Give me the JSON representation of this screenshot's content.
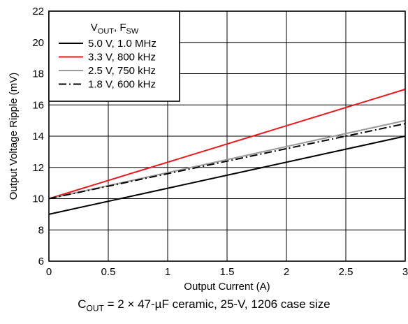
{
  "chart_data": {
    "type": "line",
    "xlabel": "Output Current (A)",
    "ylabel": "Output Voltage Ripple (mV)",
    "xlim": [
      0,
      3
    ],
    "ylim": [
      6,
      22
    ],
    "x_ticks": [
      "0",
      "0.5",
      "1",
      "1.5",
      "2",
      "2.5",
      "3"
    ],
    "y_ticks": [
      "6",
      "8",
      "10",
      "12",
      "14",
      "16",
      "18",
      "20",
      "22"
    ],
    "grid": true,
    "legend": {
      "placement": "top-left",
      "title_v": "V",
      "title_v_sub": "OUT",
      "title_sep": ", F",
      "title_f_sub": "SW"
    },
    "series": [
      {
        "name": "5.0 V, 1.0 MHz",
        "color": "#000000",
        "dash": "solid",
        "x": [
          0,
          3
        ],
        "y": [
          9.0,
          14.0
        ]
      },
      {
        "name": "3.3 V, 800 kHz",
        "color": "#e8191c",
        "dash": "solid",
        "x": [
          0,
          3
        ],
        "y": [
          10.0,
          17.0
        ]
      },
      {
        "name": "2.5 V, 750 kHz",
        "color": "#9a9a9a",
        "dash": "solid",
        "x": [
          0,
          3
        ],
        "y": [
          10.0,
          15.0
        ]
      },
      {
        "name": "1.8 V, 600 kHz",
        "color": "#000000",
        "dash": "dash-dot",
        "x": [
          0,
          3
        ],
        "y": [
          10.0,
          14.8
        ]
      }
    ]
  },
  "caption": {
    "c": "C",
    "sub": "OUT",
    "rest": " = 2 × 47-µF ceramic, 25-V, 1206 case size"
  }
}
